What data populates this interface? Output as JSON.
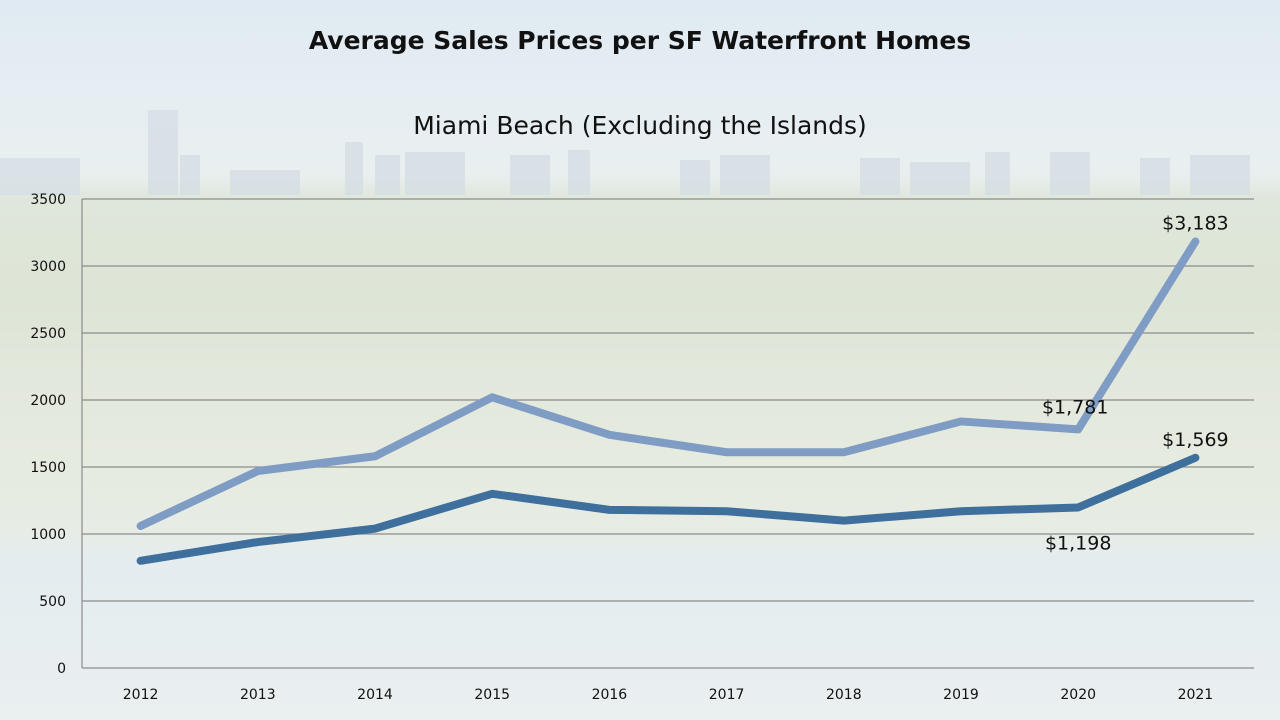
{
  "chart_data": {
    "type": "line",
    "title": "Average Sales Prices per SF Waterfront Homes",
    "subtitle": "Miami Beach (Excluding the Islands)",
    "xlabel": "",
    "ylabel": "",
    "categories": [
      "2012",
      "2013",
      "2014",
      "2015",
      "2016",
      "2017",
      "2018",
      "2019",
      "2020",
      "2021"
    ],
    "ylim": [
      0,
      3500
    ],
    "yticks": [
      0,
      500,
      1000,
      1500,
      2000,
      2500,
      3000,
      3500
    ],
    "grid": true,
    "legend": "none",
    "series": [
      {
        "color": "#7f9cc4",
        "values": [
          1060,
          1470,
          1580,
          2020,
          1740,
          1610,
          1610,
          1840,
          1781,
          3183
        ],
        "labels": [
          {
            "index": 8,
            "text": "$1,781",
            "position": "above-left"
          },
          {
            "index": 9,
            "text": "$3,183",
            "position": "above"
          }
        ]
      },
      {
        "color": "#3f6f9c",
        "values": [
          800,
          940,
          1040,
          1300,
          1180,
          1170,
          1100,
          1170,
          1198,
          1569
        ],
        "labels": [
          {
            "index": 8,
            "text": "$1,198",
            "position": "below"
          },
          {
            "index": 9,
            "text": "$1,569",
            "position": "above"
          }
        ]
      }
    ]
  }
}
